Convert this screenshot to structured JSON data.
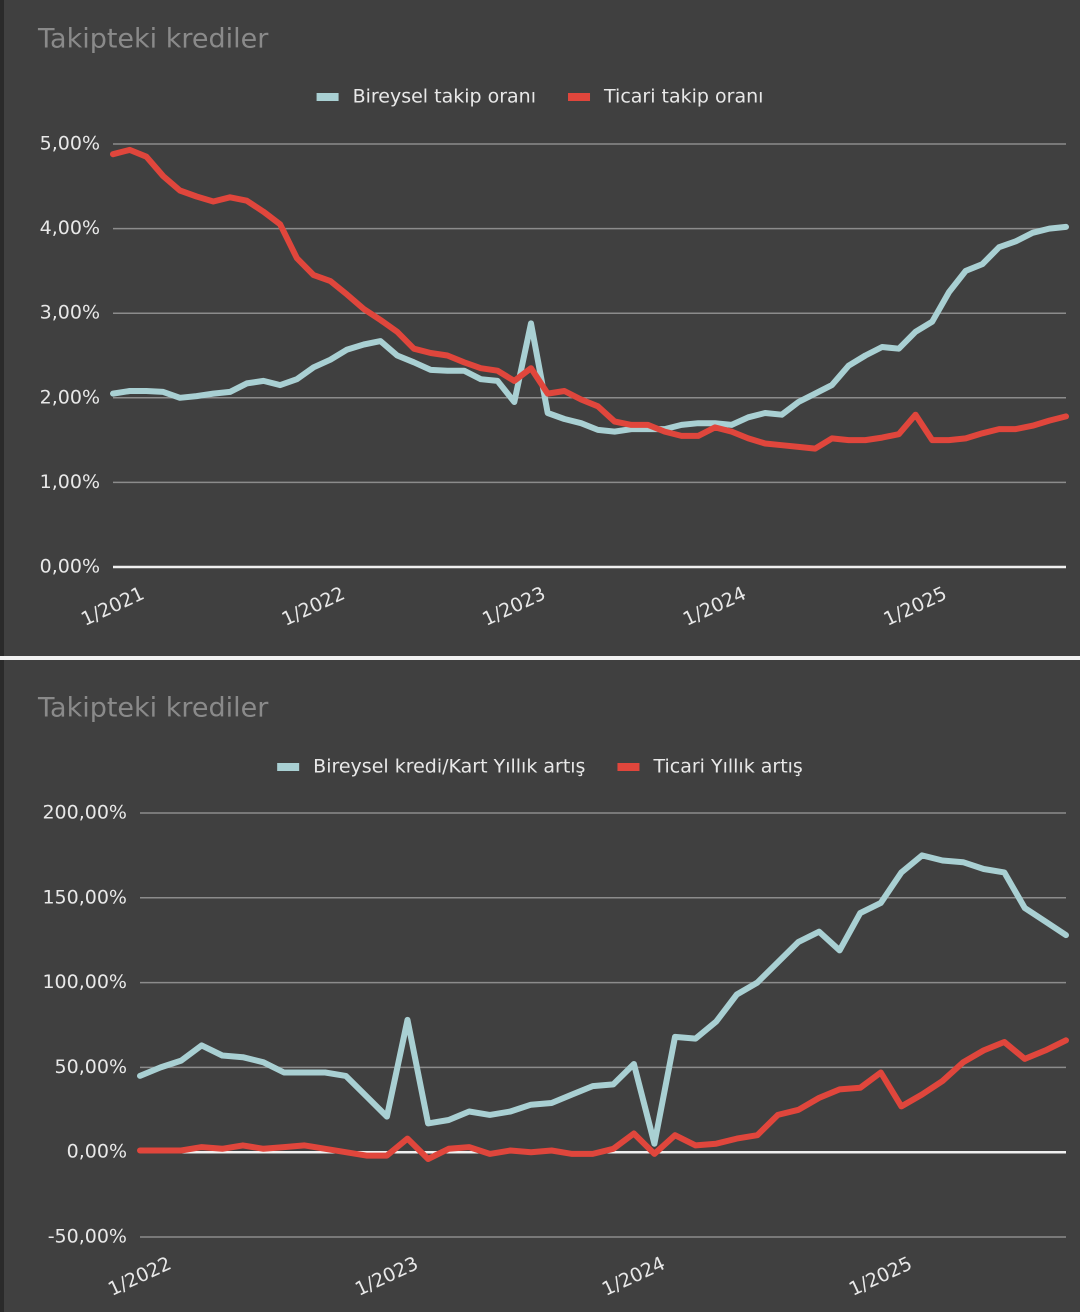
{
  "chart_data": [
    {
      "type": "line",
      "title": "Takipteki krediler",
      "x": [
        "1/2021",
        "2/2021",
        "3/2021",
        "4/2021",
        "5/2021",
        "6/2021",
        "7/2021",
        "8/2021",
        "9/2021",
        "10/2021",
        "11/2021",
        "12/2021",
        "1/2022",
        "2/2022",
        "3/2022",
        "4/2022",
        "5/2022",
        "6/2022",
        "7/2022",
        "8/2022",
        "9/2022",
        "10/2022",
        "11/2022",
        "12/2022",
        "1/2023",
        "2/2023",
        "3/2023",
        "4/2023",
        "5/2023",
        "6/2023",
        "7/2023",
        "8/2023",
        "9/2023",
        "10/2023",
        "11/2023",
        "12/2023",
        "1/2024",
        "2/2024",
        "3/2024",
        "4/2024",
        "5/2024",
        "6/2024",
        "7/2024",
        "8/2024",
        "9/2024",
        "10/2024",
        "11/2024",
        "12/2024",
        "1/2025",
        "2/2025",
        "3/2025",
        "4/2025",
        "5/2025",
        "6/2025",
        "7/2025",
        "8/2025",
        "9/2025",
        "10/2025"
      ],
      "xticks": [
        "1/2021",
        "1/2022",
        "1/2023",
        "1/2024",
        "1/2025"
      ],
      "ylim": [
        0,
        5
      ],
      "yticks": [
        {
          "value": 0,
          "label": "0,00%"
        },
        {
          "value": 1,
          "label": "1,00%"
        },
        {
          "value": 2,
          "label": "2,00%"
        },
        {
          "value": 3,
          "label": "3,00%"
        },
        {
          "value": 4,
          "label": "4,00%"
        },
        {
          "value": 5,
          "label": "5,00%"
        }
      ],
      "grid": true,
      "series": [
        {
          "name": "Bireysel takip oranı",
          "color": "#a9d0d3",
          "values": [
            2.05,
            2.08,
            2.08,
            2.07,
            2.0,
            2.02,
            2.05,
            2.07,
            2.17,
            2.2,
            2.15,
            2.22,
            2.36,
            2.45,
            2.57,
            2.63,
            2.67,
            2.5,
            2.42,
            2.33,
            2.32,
            2.32,
            2.22,
            2.2,
            1.95,
            2.88,
            1.82,
            1.75,
            1.7,
            1.62,
            1.6,
            1.63,
            1.63,
            1.63,
            1.68,
            1.7,
            1.7,
            1.68,
            1.77,
            1.82,
            1.8,
            1.95,
            2.05,
            2.15,
            2.38,
            2.5,
            2.6,
            2.58,
            2.78,
            2.9,
            3.25,
            3.5,
            3.58,
            3.78,
            3.85,
            3.95,
            4.0,
            4.02
          ]
        },
        {
          "name": "Ticari takip oranı",
          "color": "#e0463c",
          "values": [
            4.88,
            4.93,
            4.85,
            4.62,
            4.45,
            4.38,
            4.32,
            4.37,
            4.33,
            4.2,
            4.05,
            3.65,
            3.45,
            3.38,
            3.22,
            3.05,
            2.92,
            2.78,
            2.58,
            2.53,
            2.5,
            2.42,
            2.35,
            2.32,
            2.2,
            2.35,
            2.05,
            2.08,
            1.98,
            1.9,
            1.72,
            1.68,
            1.68,
            1.6,
            1.55,
            1.55,
            1.65,
            1.6,
            1.52,
            1.46,
            1.44,
            1.42,
            1.4,
            1.52,
            1.5,
            1.5,
            1.53,
            1.57,
            1.8,
            1.5,
            1.5,
            1.52,
            1.58,
            1.63,
            1.63,
            1.67,
            1.73,
            1.78
          ]
        }
      ]
    },
    {
      "type": "line",
      "title": "Takipteki krediler",
      "x": [
        "1/2022",
        "2/2022",
        "3/2022",
        "4/2022",
        "5/2022",
        "6/2022",
        "7/2022",
        "8/2022",
        "9/2022",
        "10/2022",
        "11/2022",
        "12/2022",
        "1/2023",
        "2/2023",
        "3/2023",
        "4/2023",
        "5/2023",
        "6/2023",
        "7/2023",
        "8/2023",
        "9/2023",
        "10/2023",
        "11/2023",
        "12/2023",
        "1/2024",
        "2/2024",
        "3/2024",
        "4/2024",
        "5/2024",
        "6/2024",
        "7/2024",
        "8/2024",
        "9/2024",
        "10/2024",
        "11/2024",
        "12/2024",
        "1/2025",
        "2/2025",
        "3/2025",
        "4/2025",
        "5/2025",
        "6/2025",
        "7/2025",
        "8/2025",
        "9/2025",
        "10/2025"
      ],
      "xticks": [
        "1/2022",
        "1/2023",
        "1/2024",
        "1/2025"
      ],
      "ylim": [
        -50,
        200
      ],
      "yticks": [
        {
          "value": -50,
          "label": "-50,00%"
        },
        {
          "value": 0,
          "label": "0,00%"
        },
        {
          "value": 50,
          "label": "50,00%"
        },
        {
          "value": 100,
          "label": "100,00%"
        },
        {
          "value": 150,
          "label": "150,00%"
        },
        {
          "value": 200,
          "label": "200,00%"
        }
      ],
      "grid": true,
      "series": [
        {
          "name": "Bireysel kredi/Kart Yıllık artış",
          "color": "#a9d0d3",
          "values": [
            45,
            50,
            54,
            63,
            57,
            56,
            53,
            47,
            47,
            47,
            45,
            33,
            21,
            78,
            17,
            19,
            24,
            22,
            24,
            28,
            29,
            34,
            39,
            40,
            52,
            5,
            68,
            67,
            77,
            93,
            100,
            112,
            124,
            130,
            119,
            141,
            147,
            165,
            175,
            172,
            171,
            167,
            165,
            144,
            136,
            128
          ]
        },
        {
          "name": "Ticari Yıllık artış",
          "color": "#e0463c",
          "values": [
            1,
            1,
            1,
            3,
            2,
            4,
            2,
            3,
            4,
            2,
            0,
            -2,
            -2,
            8,
            -4,
            2,
            3,
            -1,
            1,
            0,
            1,
            -1,
            -1,
            2,
            11,
            -1,
            10,
            4,
            5,
            8,
            10,
            22,
            25,
            32,
            37,
            38,
            47,
            27,
            34,
            42,
            53,
            60,
            65,
            55,
            60,
            66
          ]
        }
      ]
    }
  ]
}
